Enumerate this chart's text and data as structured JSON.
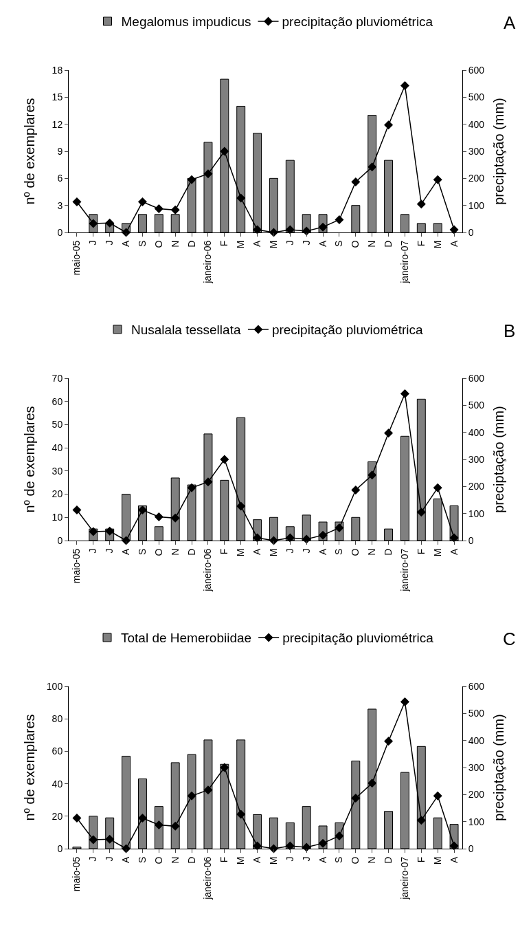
{
  "chart_data": [
    {
      "type": "bar",
      "legend": "top",
      "annotations": [
        "A"
      ],
      "ylabel": "nº de exemplares",
      "y2label": "preciptação (mm)",
      "categories": [
        "maio-05",
        "J",
        "J",
        "A",
        "S",
        "O",
        "N",
        "D",
        "janeiro-06",
        "F",
        "M",
        "A",
        "M",
        "J",
        "J",
        "A",
        "S",
        "O",
        "N",
        "D",
        "janeiro-07",
        "F",
        "M",
        "A"
      ],
      "ylim": [
        0,
        18
      ],
      "yticks": [
        0,
        3,
        6,
        9,
        12,
        15,
        18
      ],
      "y2lim": [
        0,
        600
      ],
      "y2ticks": [
        0,
        100,
        200,
        300,
        400,
        500,
        600
      ],
      "series": [
        {
          "name": "Megalomus impudicus",
          "color": "#808080",
          "values": [
            null,
            2,
            1,
            1,
            2,
            2,
            2,
            6,
            10,
            17,
            14,
            11,
            6,
            8,
            2,
            2,
            null,
            3,
            13,
            8,
            2,
            1,
            1,
            null
          ]
        },
        {
          "name": "precipitação pluviométrica",
          "type": "line",
          "axis": "y2",
          "marker": "diamond",
          "color": "#000000",
          "values": [
            113,
            33,
            35,
            0,
            113,
            88,
            83,
            195,
            217,
            300,
            127,
            10,
            0,
            10,
            5,
            20,
            47,
            187,
            242,
            397,
            543,
            105,
            195,
            10
          ]
        }
      ]
    },
    {
      "type": "bar",
      "legend": "top",
      "annotations": [
        "B"
      ],
      "ylabel": "nº de exemplares",
      "y2label": "preciptação (mm)",
      "categories": [
        "maio-05",
        "J",
        "J",
        "A",
        "S",
        "O",
        "N",
        "D",
        "janeiro-06",
        "F",
        "M",
        "A",
        "M",
        "J",
        "J",
        "A",
        "S",
        "O",
        "N",
        "D",
        "janeiro-07",
        "F",
        "M",
        "A"
      ],
      "ylim": [
        0,
        70
      ],
      "yticks": [
        0,
        10,
        20,
        30,
        40,
        50,
        60,
        70
      ],
      "y2lim": [
        0,
        600
      ],
      "y2ticks": [
        0,
        100,
        200,
        300,
        400,
        500,
        600
      ],
      "series": [
        {
          "name": "Nusalala tessellata",
          "color": "#808080",
          "values": [
            null,
            5,
            5,
            20,
            15,
            6,
            27,
            24,
            46,
            26,
            53,
            9,
            10,
            6,
            11,
            8,
            8,
            10,
            34,
            5,
            45,
            61,
            18,
            15
          ]
        },
        {
          "name": "precipitação pluviométrica",
          "type": "line",
          "axis": "y2",
          "marker": "diamond",
          "color": "#000000",
          "values": [
            113,
            33,
            35,
            0,
            113,
            88,
            83,
            195,
            217,
            300,
            127,
            10,
            0,
            10,
            5,
            20,
            47,
            187,
            242,
            397,
            543,
            105,
            195,
            10
          ]
        }
      ]
    },
    {
      "type": "bar",
      "legend": "top",
      "annotations": [
        "C"
      ],
      "ylabel": "nº de exemplares",
      "y2label": "preciptação (mm)",
      "categories": [
        "maio-05",
        "J",
        "J",
        "A",
        "S",
        "O",
        "N",
        "D",
        "janeiro-06",
        "F",
        "M",
        "A",
        "M",
        "J",
        "J",
        "A",
        "S",
        "O",
        "N",
        "D",
        "janeiro-07",
        "F",
        "M",
        "A"
      ],
      "ylim": [
        0,
        100
      ],
      "yticks": [
        0,
        20,
        40,
        60,
        80,
        100
      ],
      "y2lim": [
        0,
        600
      ],
      "y2ticks": [
        0,
        100,
        200,
        300,
        400,
        500,
        600
      ],
      "series": [
        {
          "name": "Total de Hemerobiidae",
          "color": "#808080",
          "values": [
            1,
            20,
            19,
            57,
            43,
            26,
            53,
            58,
            67,
            52,
            67,
            21,
            19,
            16,
            26,
            14,
            16,
            54,
            86,
            23,
            47,
            63,
            19,
            15
          ]
        },
        {
          "name": "precipitação pluviométrica",
          "type": "line",
          "axis": "y2",
          "marker": "diamond",
          "color": "#000000",
          "values": [
            113,
            33,
            35,
            0,
            113,
            88,
            83,
            195,
            217,
            300,
            127,
            10,
            0,
            10,
            5,
            20,
            47,
            187,
            242,
            397,
            543,
            105,
            195,
            10
          ]
        }
      ]
    }
  ]
}
